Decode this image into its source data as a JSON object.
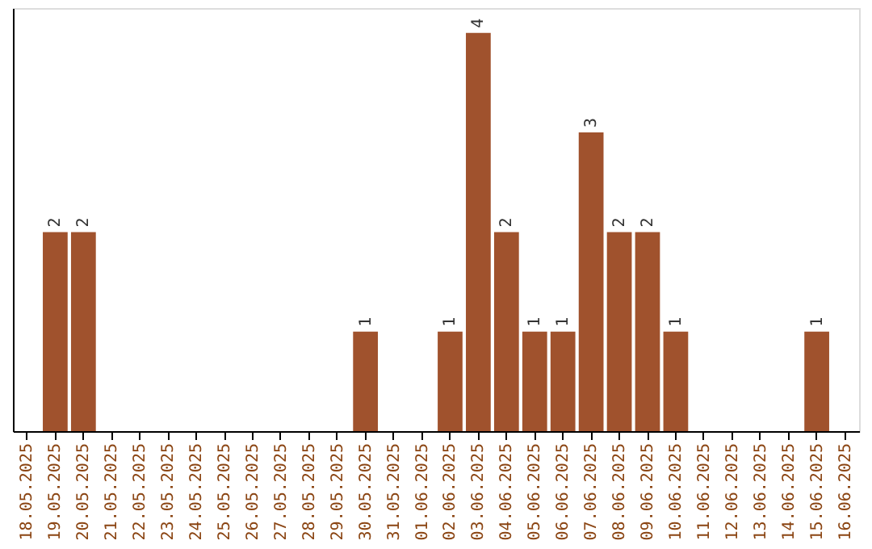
{
  "chart_data": {
    "type": "bar",
    "categories": [
      "18.05.2025",
      "19.05.2025",
      "20.05.2025",
      "21.05.2025",
      "22.05.2025",
      "23.05.2025",
      "24.05.2025",
      "25.05.2025",
      "26.05.2025",
      "27.05.2025",
      "28.05.2025",
      "29.05.2025",
      "30.05.2025",
      "31.05.2025",
      "01.06.2025",
      "02.06.2025",
      "03.06.2025",
      "04.06.2025",
      "05.06.2025",
      "06.06.2025",
      "07.06.2025",
      "08.06.2025",
      "09.06.2025",
      "10.06.2025",
      "11.06.2025",
      "12.06.2025",
      "13.06.2025",
      "14.06.2025",
      "15.06.2025",
      "16.06.2025"
    ],
    "values": [
      0,
      2,
      2,
      0,
      0,
      0,
      0,
      0,
      0,
      0,
      0,
      0,
      1,
      0,
      0,
      1,
      4,
      2,
      1,
      1,
      3,
      2,
      2,
      1,
      0,
      0,
      0,
      0,
      1,
      0
    ],
    "value_labels": [
      null,
      "2",
      "2",
      null,
      null,
      null,
      null,
      null,
      null,
      null,
      null,
      null,
      "1",
      null,
      null,
      "1",
      "4",
      "2",
      "1",
      "1",
      "3",
      "2",
      "2",
      "1",
      null,
      null,
      null,
      null,
      "1",
      null
    ],
    "color": "#a0522d",
    "ylim": [
      0,
      4.25
    ],
    "tick_labels": "x",
    "grid": false
  }
}
